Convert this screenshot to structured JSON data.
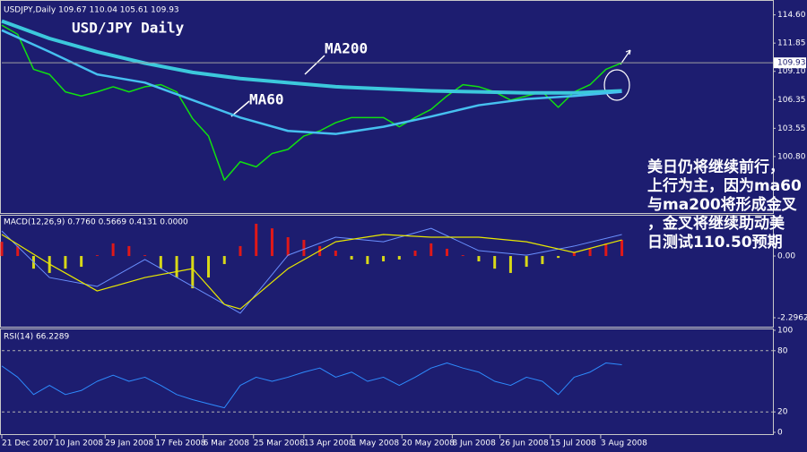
{
  "chart_data": [
    {
      "type": "line",
      "title": "USDJPY,Daily  109.67 110.04 105.61 109.93",
      "last_price": 109.93,
      "annotations": [
        "USD/JPY Daily",
        "MA200",
        "MA60"
      ],
      "note_lines": [
        "美日仍将继续前行，",
        "上行为主，因为ma60",
        "与ma200将形成金叉",
        "，金叉将继续助动美",
        "日测试110.50预期"
      ],
      "xlim": [
        0,
        291
      ],
      "ylim": [
        95.3,
        115.7
      ],
      "yticks": [
        {
          "value": 114.6,
          "label": "114.60"
        },
        111.85,
        {
          "value": 109.1,
          "label": "109.10"
        },
        106.35,
        103.55,
        {
          "value": 100.8,
          "label": "100.80"
        }
      ],
      "x": [
        0,
        6,
        12,
        18,
        24,
        30,
        36,
        42,
        48,
        54,
        60,
        66,
        72,
        78,
        84,
        90,
        96,
        102,
        108,
        114,
        120,
        126,
        132,
        138,
        144,
        150,
        156,
        162,
        168,
        174,
        180,
        186,
        192,
        198,
        204,
        210,
        216,
        222,
        228,
        234
      ],
      "series": [
        {
          "name": "USDJPY",
          "color": "#10e010",
          "width": 1.5,
          "values": [
            113.6,
            112.7,
            109.3,
            108.8,
            107.1,
            106.7,
            107.1,
            107.6,
            107.1,
            107.6,
            107.8,
            107.1,
            104.5,
            102.8,
            98.5,
            100.3,
            99.8,
            101.1,
            101.5,
            102.8,
            103.3,
            104.1,
            104.6,
            104.6,
            104.6,
            103.7,
            104.6,
            105.4,
            106.7,
            107.8,
            107.6,
            107.1,
            106.3,
            106.7,
            107.1,
            105.6,
            107.1,
            107.8,
            109.3,
            109.93
          ]
        },
        {
          "name": "MA200",
          "color": "#3cc8dc",
          "width": 4,
          "x": [
            0,
            18,
            36,
            54,
            72,
            90,
            108,
            126,
            144,
            162,
            180,
            198,
            216,
            234
          ],
          "values": [
            114.0,
            112.3,
            111.0,
            109.9,
            109.0,
            108.4,
            108.0,
            107.6,
            107.4,
            107.2,
            107.1,
            107.0,
            107.0,
            107.2
          ]
        },
        {
          "name": "MA60",
          "color": "#46c0f0",
          "width": 2.5,
          "x": [
            0,
            18,
            36,
            54,
            72,
            90,
            108,
            126,
            144,
            162,
            180,
            198,
            216,
            234
          ],
          "values": [
            113.1,
            111.0,
            108.8,
            108.0,
            106.3,
            104.6,
            103.3,
            103.0,
            103.7,
            104.7,
            105.8,
            106.4,
            106.7,
            107.1
          ]
        }
      ]
    },
    {
      "type": "bar",
      "title": "MACD(12,26,9) 0.7760 0.5669 0.4131 0.0000",
      "xlim": [
        0,
        291
      ],
      "ylim": [
        -2.63,
        1.5
      ],
      "yticks": [
        {
          "value": 0,
          "label": "0.00"
        },
        -2.2962
      ],
      "x": [
        0,
        6,
        12,
        18,
        24,
        30,
        36,
        42,
        48,
        54,
        60,
        66,
        72,
        78,
        84,
        90,
        96,
        102,
        108,
        114,
        120,
        126,
        132,
        138,
        144,
        150,
        156,
        162,
        168,
        174,
        180,
        186,
        192,
        198,
        204,
        210,
        216,
        222,
        228,
        234
      ],
      "up_color": "#e01818",
      "down_color": "#d8d818",
      "values": [
        0.53,
        0.37,
        -0.47,
        -0.63,
        -0.47,
        -0.4,
        0.03,
        0.47,
        0.37,
        0.03,
        -0.47,
        -0.8,
        -1.2,
        -0.8,
        -0.3,
        0.37,
        1.2,
        1.03,
        0.7,
        0.6,
        0.37,
        0.2,
        -0.13,
        -0.3,
        -0.2,
        -0.13,
        0.2,
        0.47,
        0.27,
        0.03,
        -0.2,
        -0.47,
        -0.63,
        -0.4,
        -0.3,
        -0.07,
        0.13,
        0.27,
        0.47,
        0.6
      ],
      "series": [
        {
          "name": "MACD",
          "color": "#6a90ff",
          "width": 1,
          "x": [
            0,
            18,
            36,
            54,
            72,
            90,
            108,
            126,
            144,
            162,
            180,
            198,
            216,
            234
          ],
          "values": [
            0.93,
            -0.8,
            -1.13,
            -0.13,
            -1.13,
            -2.13,
            0.03,
            0.7,
            0.53,
            1.03,
            0.2,
            0.03,
            0.37,
            0.8
          ]
        },
        {
          "name": "Signal",
          "color": "#e8e800",
          "width": 1.2,
          "x": [
            0,
            18,
            36,
            54,
            72,
            84,
            90,
            108,
            126,
            144,
            162,
            180,
            198,
            216,
            234
          ],
          "values": [
            0.8,
            -0.3,
            -1.3,
            -0.8,
            -0.47,
            -1.8,
            -1.97,
            -0.47,
            0.53,
            0.8,
            0.7,
            0.7,
            0.53,
            0.13,
            0.6
          ]
        }
      ]
    },
    {
      "type": "line",
      "title": "RSI(14) 66.2289",
      "grid": true,
      "xlim": [
        0,
        291
      ],
      "ylim": [
        0,
        100
      ],
      "yticks": [
        100,
        80,
        20,
        0
      ],
      "xticks": [
        {
          "value": 0,
          "label": "21 Dec 2007"
        },
        {
          "value": 20,
          "label": "10 Jan 2008"
        },
        {
          "value": 39,
          "label": "29 Jan 2008"
        },
        {
          "value": 58,
          "label": "17 Feb 2008"
        },
        {
          "value": 76,
          "label": "6 Mar 2008"
        },
        {
          "value": 95,
          "label": "25 Mar 2008"
        },
        {
          "value": 114,
          "label": "13 Apr 2008"
        },
        {
          "value": 132,
          "label": "1 May 2008"
        },
        {
          "value": 151,
          "label": "20 May 2008"
        },
        {
          "value": 170,
          "label": "8 Jun 2008"
        },
        {
          "value": 188,
          "label": "26 Jun 2008"
        },
        {
          "value": 207,
          "label": "15 Jul 2008"
        },
        {
          "value": 226,
          "label": "3 Aug 2008"
        }
      ],
      "x": [
        0,
        6,
        12,
        18,
        24,
        30,
        36,
        42,
        48,
        54,
        60,
        66,
        72,
        78,
        84,
        90,
        96,
        102,
        108,
        114,
        120,
        126,
        132,
        138,
        144,
        150,
        156,
        162,
        168,
        174,
        180,
        186,
        192,
        198,
        204,
        210,
        216,
        222,
        228,
        234
      ],
      "series": [
        {
          "name": "RSI",
          "color": "#2e8cff",
          "width": 1,
          "values": [
            65,
            54,
            37,
            46,
            37,
            41,
            50,
            56,
            50,
            54,
            46,
            37,
            32,
            28,
            24,
            46,
            54,
            50,
            54,
            59,
            63,
            54,
            59,
            50,
            54,
            46,
            54,
            63,
            68,
            63,
            59,
            50,
            46,
            54,
            50,
            37,
            54,
            59,
            68,
            66.2289
          ]
        }
      ]
    }
  ]
}
